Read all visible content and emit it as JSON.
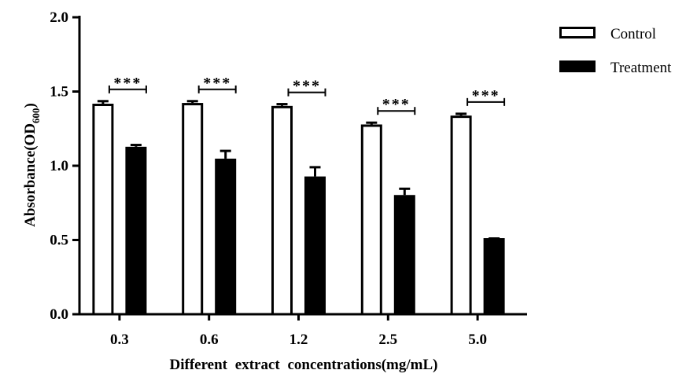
{
  "chart_data": {
    "type": "bar",
    "xlabel": "Different extract concentrations(mg/mL)",
    "ylabel": {
      "main": "Absorbance(OD",
      "sub": "600",
      "close": ")"
    },
    "categories": [
      "0.3",
      "0.6",
      "1.2",
      "2.5",
      "5.0"
    ],
    "ylim": [
      0,
      2.0
    ],
    "yticks": [
      0.0,
      0.5,
      1.0,
      1.5,
      2.0
    ],
    "ytick_labels": [
      "0.0",
      "0.5",
      "1.0",
      "1.5",
      "2.0"
    ],
    "grid": false,
    "legend_position": "top-right",
    "series": [
      {
        "name": "Control",
        "values": [
          1.41,
          1.415,
          1.395,
          1.27,
          1.33
        ],
        "errors": [
          0.025,
          0.02,
          0.02,
          0.02,
          0.02
        ],
        "fill": "#ffffff",
        "stroke": "#000000"
      },
      {
        "name": "Treatment",
        "values": [
          1.12,
          1.04,
          0.92,
          0.795,
          0.505
        ],
        "errors": [
          0.02,
          0.06,
          0.07,
          0.05,
          0.005
        ],
        "fill": "#000000",
        "stroke": "#000000"
      }
    ],
    "significance": [
      "***",
      "***",
      "***",
      "***",
      "***"
    ]
  }
}
